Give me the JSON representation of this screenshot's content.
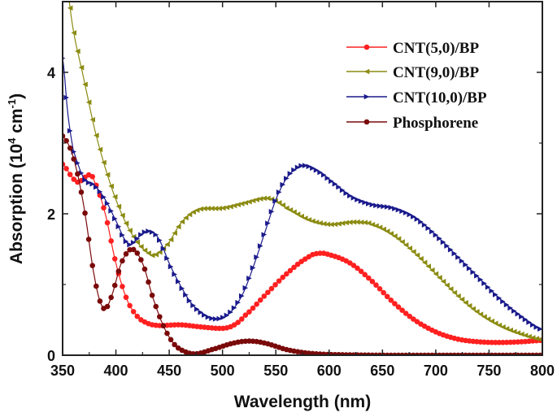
{
  "chart_data": {
    "type": "line",
    "title": "",
    "xlabel": "Wavelength (nm)",
    "ylabel_main": "Absorption (10",
    "ylabel_sup1": "4",
    "ylabel_mid": " cm",
    "ylabel_sup2": "-1",
    "ylabel_end": ")",
    "xlim": [
      350,
      800
    ],
    "ylim": [
      0,
      5
    ],
    "xticks": [
      "350",
      "400",
      "450",
      "500",
      "550",
      "600",
      "650",
      "700",
      "750",
      "800"
    ],
    "yticks": [
      "0",
      "2",
      "4"
    ],
    "grid": false,
    "legend_position": "top-right",
    "series": [
      {
        "name": "CNT(5,0)/BP",
        "color": "#ff2020",
        "marker": "circle",
        "x": [
          350,
          360,
          365,
          375,
          380,
          390,
          400,
          410,
          420,
          430,
          440,
          460,
          480,
          500,
          510,
          520,
          540,
          560,
          580,
          590,
          600,
          620,
          640,
          660,
          680,
          700,
          720,
          740,
          760,
          780,
          800
        ],
        "y": [
          2.7,
          2.5,
          2.45,
          2.55,
          2.45,
          2.0,
          1.3,
          0.8,
          0.55,
          0.45,
          0.42,
          0.43,
          0.4,
          0.38,
          0.42,
          0.55,
          0.85,
          1.15,
          1.38,
          1.44,
          1.42,
          1.3,
          1.05,
          0.75,
          0.5,
          0.33,
          0.23,
          0.19,
          0.18,
          0.19,
          0.21
        ]
      },
      {
        "name": "CNT(9,0)/BP",
        "color": "#8b8b12",
        "marker": "triangle-left",
        "x": [
          350,
          360,
          370,
          380,
          390,
          400,
          410,
          420,
          430,
          437,
          450,
          460,
          470,
          480,
          500,
          520,
          540,
          550,
          560,
          580,
          600,
          620,
          630,
          640,
          660,
          680,
          700,
          720,
          740,
          760,
          780,
          800
        ],
        "y": [
          5.6,
          4.6,
          3.9,
          3.2,
          2.65,
          2.2,
          1.85,
          1.6,
          1.45,
          1.42,
          1.6,
          1.85,
          2.0,
          2.07,
          2.08,
          2.15,
          2.22,
          2.18,
          2.08,
          1.92,
          1.85,
          1.88,
          1.88,
          1.85,
          1.7,
          1.45,
          1.15,
          0.85,
          0.6,
          0.42,
          0.3,
          0.22
        ]
      },
      {
        "name": "CNT(10,0)/BP",
        "color": "#1a1a8c",
        "marker": "triangle-right",
        "x": [
          350,
          355,
          360,
          370,
          380,
          390,
          400,
          410,
          415,
          425,
          432,
          440,
          450,
          460,
          470,
          480,
          490,
          500,
          510,
          520,
          530,
          540,
          550,
          560,
          570,
          578,
          590,
          600,
          620,
          640,
          660,
          680,
          700,
          720,
          740,
          760,
          780,
          800
        ],
        "y": [
          4.2,
          3.4,
          2.9,
          2.5,
          2.4,
          2.2,
          1.9,
          1.6,
          1.58,
          1.72,
          1.75,
          1.65,
          1.3,
          1.0,
          0.75,
          0.6,
          0.52,
          0.53,
          0.65,
          0.9,
          1.3,
          1.75,
          2.2,
          2.5,
          2.65,
          2.68,
          2.6,
          2.48,
          2.25,
          2.13,
          2.08,
          1.95,
          1.7,
          1.4,
          1.1,
          0.8,
          0.55,
          0.36
        ]
      },
      {
        "name": "Phosphorene",
        "color": "#7a0a0a",
        "marker": "circle",
        "x": [
          350,
          360,
          370,
          380,
          388,
          395,
          405,
          415,
          425,
          435,
          445,
          455,
          465,
          475,
          490,
          510,
          525,
          540,
          560,
          580,
          600,
          650,
          700,
          750,
          800
        ],
        "y": [
          3.1,
          2.8,
          2.1,
          1.1,
          0.67,
          0.8,
          1.3,
          1.5,
          1.3,
          0.8,
          0.4,
          0.15,
          0.05,
          0.02,
          0.08,
          0.17,
          0.2,
          0.17,
          0.08,
          0.03,
          0.01,
          0,
          0,
          0,
          0
        ]
      }
    ]
  }
}
